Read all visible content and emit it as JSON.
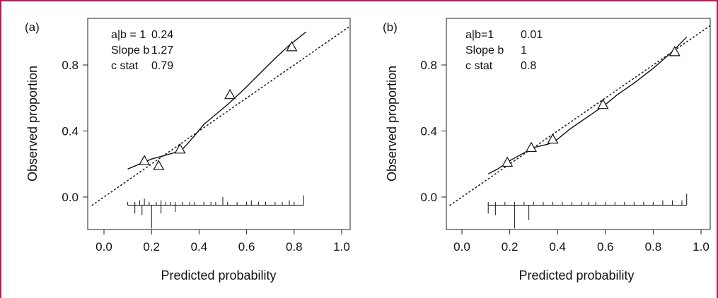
{
  "border_color": "#c2185b",
  "chart_data": [
    {
      "type": "scatter",
      "panel_label": "(a)",
      "xlabel": "Predicted probability",
      "ylabel": "Observed proportion",
      "xlim": [
        -0.05,
        1.05
      ],
      "ylim": [
        -0.18,
        1.02
      ],
      "xticks": [
        "0.0",
        "0.2",
        "0.4",
        "0.6",
        "0.8",
        "1.0"
      ],
      "yticks": [
        "0.0",
        "0.4",
        "0.8"
      ],
      "stats": [
        {
          "label": "a|b = 1",
          "value": "0.24"
        },
        {
          "label": "Slope b",
          "value": "1.27"
        },
        {
          "label": "c stat",
          "value": "0.79"
        }
      ],
      "reference_line": {
        "style": "dotted",
        "from": [
          -0.05,
          -0.05
        ],
        "to": [
          1.05,
          1.05
        ]
      },
      "grouped_points": {
        "marker": "triangle",
        "x": [
          0.17,
          0.23,
          0.32,
          0.53,
          0.79
        ],
        "y": [
          0.22,
          0.19,
          0.29,
          0.62,
          0.91
        ]
      },
      "smooth_curve": {
        "x": [
          0.1,
          0.15,
          0.2,
          0.25,
          0.3,
          0.33,
          0.35,
          0.38,
          0.42,
          0.47,
          0.52,
          0.58,
          0.65,
          0.72,
          0.78,
          0.85
        ],
        "y": [
          0.17,
          0.2,
          0.23,
          0.25,
          0.27,
          0.29,
          0.32,
          0.37,
          0.44,
          0.5,
          0.56,
          0.64,
          0.74,
          0.84,
          0.92,
          1.0
        ]
      },
      "rug": {
        "baseline": -0.05,
        "up": [
          0.1,
          0.13,
          0.15,
          0.17,
          0.19,
          0.22,
          0.24,
          0.26,
          0.28,
          0.3,
          0.33,
          0.36,
          0.38,
          0.42,
          0.45,
          0.47,
          0.5,
          0.52,
          0.56,
          0.6,
          0.62,
          0.65,
          0.68,
          0.72,
          0.75,
          0.78,
          0.8,
          0.84
        ],
        "up_heights": [
          0.02,
          0.02,
          0.03,
          0.04,
          0.02,
          0.02,
          0.03,
          0.02,
          0.02,
          0.02,
          0.02,
          0.02,
          0.02,
          0.02,
          0.02,
          0.02,
          0.05,
          0.02,
          0.02,
          0.02,
          0.03,
          0.02,
          0.02,
          0.02,
          0.02,
          0.03,
          0.02,
          0.06
        ],
        "down": [
          0.13,
          0.16,
          0.2,
          0.24,
          0.3
        ],
        "down_heights": [
          0.05,
          0.06,
          0.14,
          0.05,
          0.04
        ]
      }
    },
    {
      "type": "scatter",
      "panel_label": "(b)",
      "xlabel": "Predicted probability",
      "ylabel": "Observed proportion",
      "xlim": [
        -0.05,
        1.05
      ],
      "ylim": [
        -0.18,
        1.02
      ],
      "xticks": [
        "0.0",
        "0.2",
        "0.4",
        "0.6",
        "0.8",
        "1.0"
      ],
      "yticks": [
        "0.0",
        "0.4",
        "0.8"
      ],
      "stats": [
        {
          "label": "a|b=1",
          "value": "0.01"
        },
        {
          "label": "Slope b",
          "value": "1"
        },
        {
          "label": "c stat",
          "value": "0.8"
        }
      ],
      "reference_line": {
        "style": "dotted",
        "from": [
          -0.05,
          -0.05
        ],
        "to": [
          1.05,
          1.05
        ]
      },
      "grouped_points": {
        "marker": "triangle",
        "x": [
          0.19,
          0.29,
          0.38,
          0.59,
          0.89
        ],
        "y": [
          0.21,
          0.3,
          0.35,
          0.56,
          0.88
        ]
      },
      "smooth_curve": {
        "x": [
          0.11,
          0.15,
          0.2,
          0.25,
          0.3,
          0.36,
          0.4,
          0.45,
          0.5,
          0.55,
          0.6,
          0.65,
          0.72,
          0.8,
          0.88,
          0.94
        ],
        "y": [
          0.14,
          0.17,
          0.22,
          0.26,
          0.3,
          0.32,
          0.35,
          0.41,
          0.46,
          0.51,
          0.56,
          0.62,
          0.69,
          0.78,
          0.88,
          0.97
        ]
      },
      "rug": {
        "baseline": -0.05,
        "up": [
          0.11,
          0.14,
          0.18,
          0.22,
          0.26,
          0.3,
          0.34,
          0.38,
          0.42,
          0.46,
          0.5,
          0.53,
          0.56,
          0.6,
          0.64,
          0.68,
          0.72,
          0.76,
          0.8,
          0.84,
          0.88,
          0.92,
          0.94
        ],
        "up_heights": [
          0.02,
          0.02,
          0.02,
          0.02,
          0.02,
          0.02,
          0.02,
          0.02,
          0.02,
          0.02,
          0.02,
          0.02,
          0.02,
          0.02,
          0.02,
          0.02,
          0.02,
          0.02,
          0.02,
          0.03,
          0.03,
          0.03,
          0.07
        ],
        "down": [
          0.11,
          0.14,
          0.22,
          0.28
        ],
        "down_heights": [
          0.05,
          0.06,
          0.14,
          0.09
        ]
      }
    }
  ]
}
